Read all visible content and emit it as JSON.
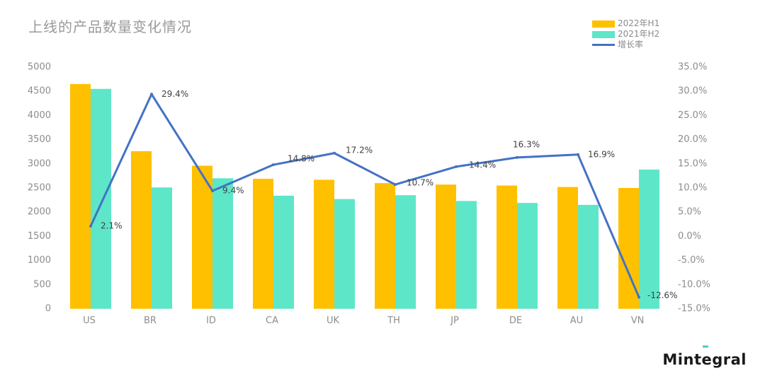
{
  "title": "上线的产品数量变化情况",
  "logo": "Mintegral",
  "colors": {
    "h1": "#FFC000",
    "h2": "#5EE6C9",
    "growth": "#4472C4",
    "axis": "#8c8c8c",
    "label": "#404040"
  },
  "legend": [
    {
      "name": "2022年H1",
      "kind": "bar",
      "color": "#FFC000"
    },
    {
      "name": "2021年H2",
      "kind": "bar",
      "color": "#5EE6C9"
    },
    {
      "name": "增长率",
      "kind": "line",
      "color": "#4472C4"
    }
  ],
  "chart_data": {
    "type": "bar",
    "title": "上线的产品数量变化情况",
    "categories": [
      "US",
      "BR",
      "ID",
      "CA",
      "UK",
      "TH",
      "JP",
      "DE",
      "AU",
      "VN"
    ],
    "series": [
      {
        "name": "2022年H1",
        "values": [
          4650,
          3260,
          2960,
          2690,
          2670,
          2600,
          2570,
          2550,
          2520,
          2500
        ]
      },
      {
        "name": "2021年H2",
        "values": [
          4550,
          2510,
          2700,
          2340,
          2270,
          2350,
          2230,
          2190,
          2150,
          2880
        ]
      }
    ],
    "line_series": {
      "name": "增长率",
      "values": [
        2.1,
        29.4,
        9.4,
        14.8,
        17.2,
        10.7,
        14.4,
        16.3,
        16.9,
        -12.6
      ],
      "labels": [
        "2.1%",
        "29.4%",
        "9.4%",
        "14.8%",
        "17.2%",
        "10.7%",
        "14.4%",
        "16.3%",
        "16.9%",
        "-12.6%"
      ]
    },
    "y_left": {
      "ylim": [
        0,
        5000
      ],
      "ticks": [
        0,
        500,
        1000,
        1500,
        2000,
        2500,
        3000,
        3500,
        4000,
        4500,
        5000
      ]
    },
    "y_right": {
      "ylim": [
        -15,
        35
      ],
      "ticks": [
        "-15.0%",
        "-10.0%",
        "-5.0%",
        "0.0%",
        "5.0%",
        "10.0%",
        "15.0%",
        "20.0%",
        "25.0%",
        "30.0%",
        "35.0%"
      ]
    },
    "grid": false,
    "legend_position": "top-right"
  }
}
